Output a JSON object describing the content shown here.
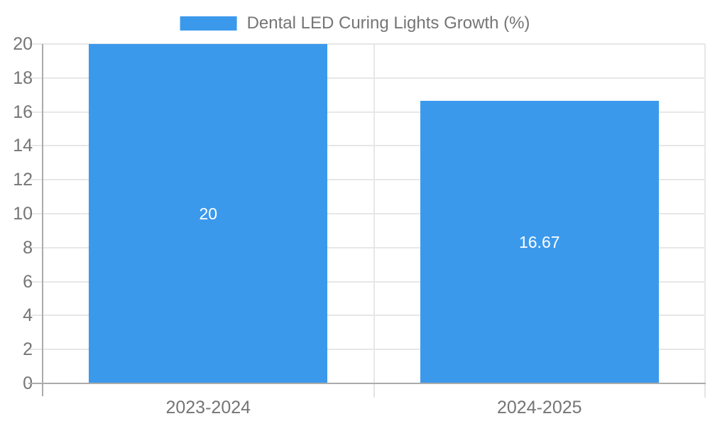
{
  "chart_data": {
    "type": "bar",
    "title": "",
    "legend": {
      "label": "Dental LED Curing Lights Growth (%)",
      "position": "top-center"
    },
    "categories": [
      "2023-2024",
      "2024-2025"
    ],
    "series": [
      {
        "name": "Dental LED Curing Lights Growth (%)",
        "values": [
          20,
          16.67
        ]
      }
    ],
    "bar_value_labels": [
      "20",
      "16.67"
    ],
    "ylabel": "",
    "xlabel": "",
    "ylim": [
      0,
      20
    ],
    "ytick_step": 2,
    "yticks": [
      0,
      2,
      4,
      6,
      8,
      10,
      12,
      14,
      16,
      18,
      20
    ],
    "grid": true,
    "colors": {
      "bar": "#3b99ec",
      "grid": "#e7e7e7",
      "boundary_tick": "#e4e4e4",
      "axis": "#ababab",
      "text": "#757575",
      "bar_label_text": "#ffffff",
      "background": "#ffffff"
    }
  }
}
